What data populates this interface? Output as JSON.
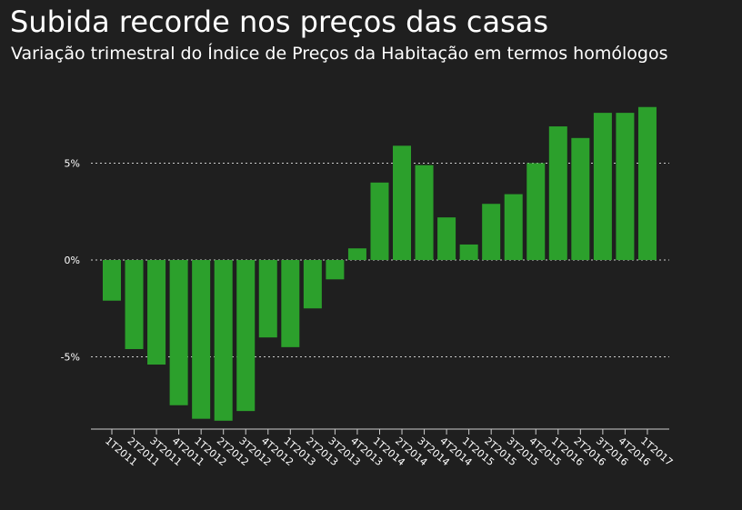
{
  "header": {
    "title": "Subida recorde nos preços das casas",
    "subtitle": "Variação trimestral do Índice de Preços da Habitação em termos homólogos"
  },
  "colors": {
    "background": "#1f1f1f",
    "bar": "#2ca02c",
    "text": "#ffffff",
    "grid": "#cccccc"
  },
  "chart_data": {
    "type": "bar",
    "title": "Subida recorde nos preços das casas",
    "subtitle": "Variação trimestral do Índice de Preços da Habitação em termos homólogos",
    "xlabel": "",
    "ylabel": "",
    "ylim": [
      -8.5,
      8.5
    ],
    "yticks": [
      -5,
      0,
      5
    ],
    "ytick_labels": [
      "-5%",
      "0%",
      "5%"
    ],
    "grid": true,
    "legend": "none",
    "categories": [
      "1T2011",
      "2T2011",
      "3T2011",
      "4T2011",
      "1T2012",
      "2T2012",
      "3T2012",
      "4T2012",
      "1T2013",
      "2T2013",
      "3T2013",
      "4T2013",
      "1T2014",
      "2T2014",
      "3T2014",
      "4T2014",
      "1T2015",
      "2T2015",
      "3T2015",
      "4T2015",
      "1T2016",
      "2T2016",
      "3T2016",
      "4T2016",
      "1T2017"
    ],
    "values": [
      -2.1,
      -4.6,
      -5.4,
      -7.5,
      -8.2,
      -8.3,
      -7.8,
      -4.0,
      -4.5,
      -2.5,
      -1.0,
      0.6,
      4.0,
      5.9,
      4.9,
      2.2,
      0.8,
      2.9,
      3.4,
      5.0,
      6.9,
      6.3,
      7.6,
      7.6,
      7.9
    ]
  }
}
